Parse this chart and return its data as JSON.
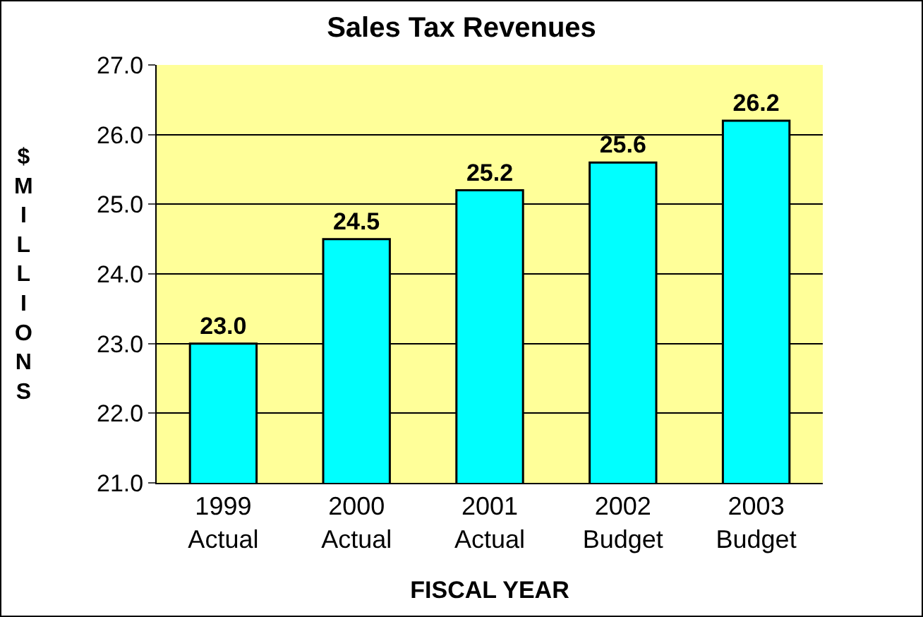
{
  "chart_data": {
    "type": "bar",
    "title": "Sales Tax Revenues",
    "xlabel": "FISCAL YEAR",
    "ylabel": "$ MILLIONS",
    "categories": [
      "1999\nActual",
      "2000\nActual",
      "2001\nActual",
      "2002\nBudget",
      "2003\nBudget"
    ],
    "values": [
      23.0,
      24.5,
      25.2,
      25.6,
      26.2
    ],
    "value_labels": [
      "23.0",
      "24.5",
      "25.2",
      "25.6",
      "26.2"
    ],
    "color": "#00ffff",
    "ylim": [
      21,
      27
    ],
    "yticks": [
      {
        "value": 21,
        "label": "21.0"
      },
      {
        "value": 22,
        "label": "22.0"
      },
      {
        "value": 23,
        "label": "23.0"
      },
      {
        "value": 24,
        "label": "24.0"
      },
      {
        "value": 25,
        "label": "25.0"
      },
      {
        "value": 26,
        "label": "26.0"
      },
      {
        "value": 27,
        "label": "27.0"
      }
    ],
    "grid": "y"
  }
}
